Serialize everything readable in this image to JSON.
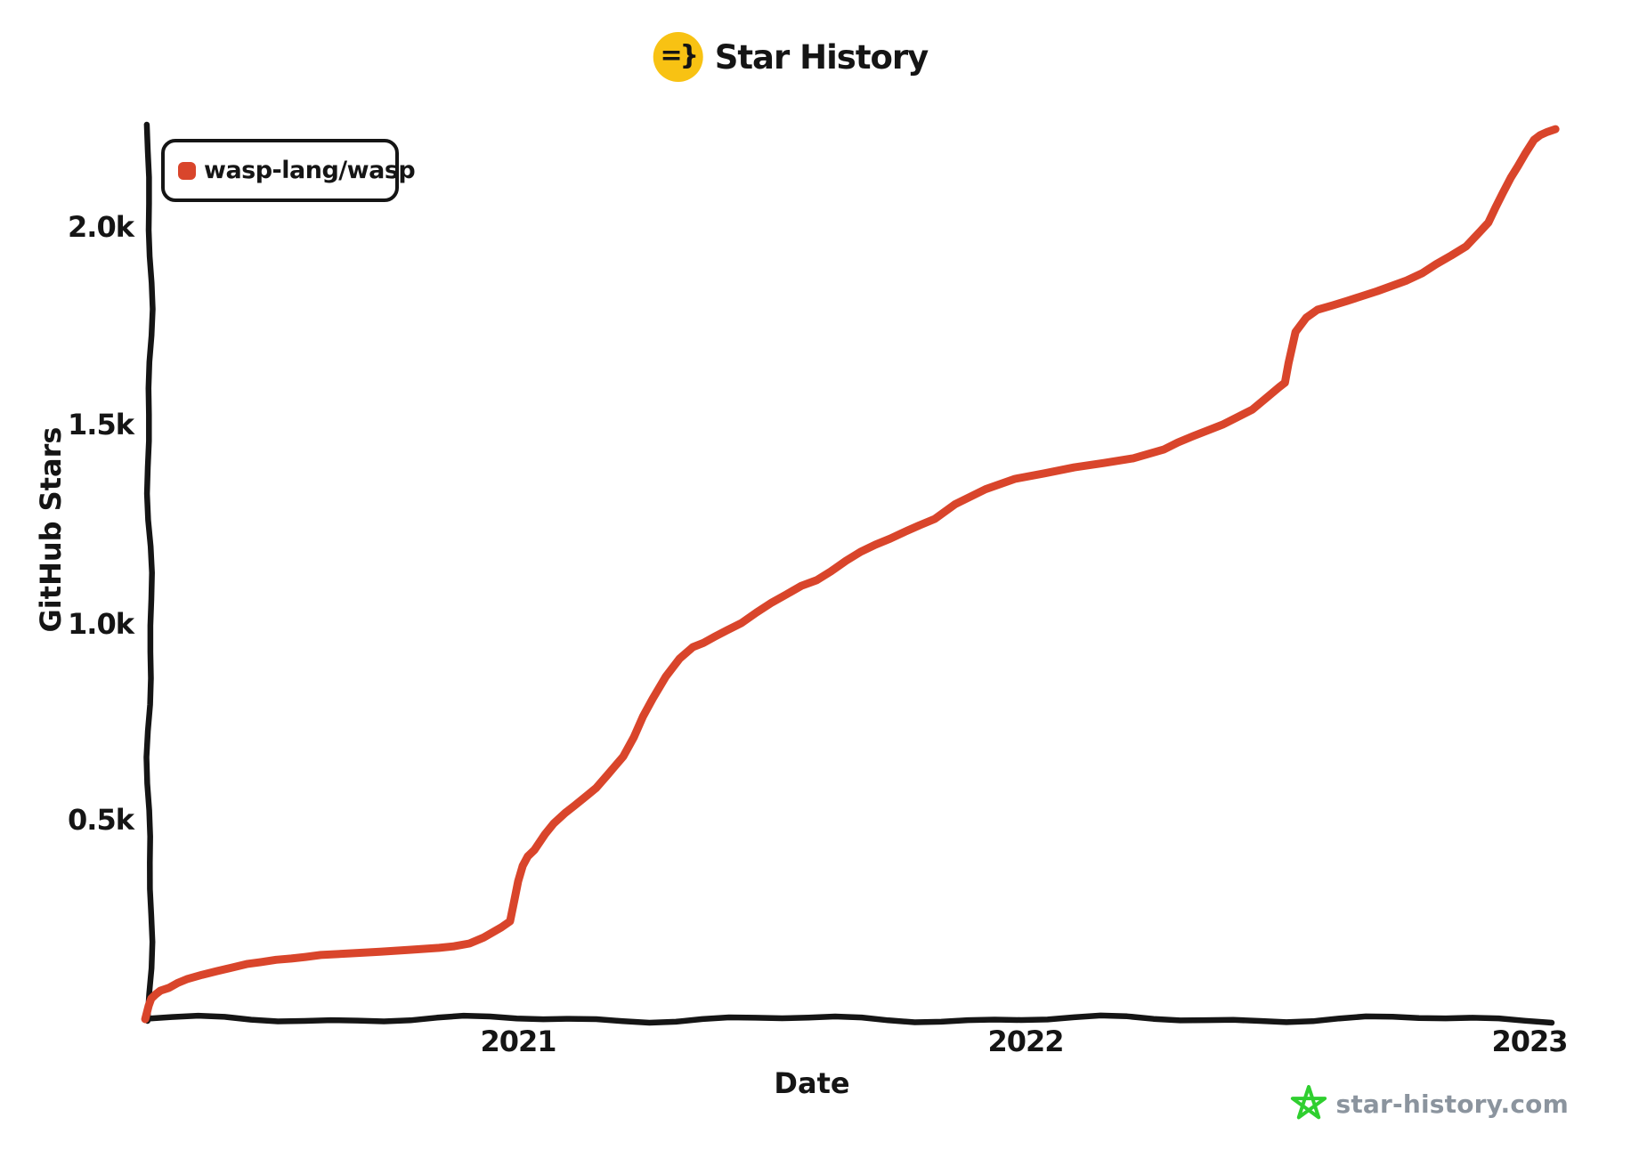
{
  "title": {
    "text": "Star History",
    "icon_text": "=}",
    "icon_bg": "#f8c213"
  },
  "legend": {
    "items": [
      {
        "label": "wasp-lang/wasp",
        "color": "#d9452b"
      }
    ]
  },
  "axes": {
    "y_label": "GitHub Stars",
    "x_label": "Date",
    "y_ticks": [
      "2.0k",
      "1.5k",
      "1.0k",
      "0.5k"
    ],
    "x_ticks": [
      "2021",
      "2022",
      "2023"
    ]
  },
  "footer": {
    "site": "star-history.com",
    "star_color": "#2fcf2f",
    "text_color": "#8b949e"
  },
  "colors": {
    "ink": "#151515",
    "background": "#ffffff"
  },
  "chart_data": {
    "type": "line",
    "title": "Star History",
    "xlabel": "Date",
    "ylabel": "GitHub Stars",
    "xlim": [
      2020.26,
      2023.05
    ],
    "ylim": [
      0,
      2310
    ],
    "x_tick_values": [
      2021,
      2022,
      2023
    ],
    "x_tick_labels": [
      "2021",
      "2022",
      "2023"
    ],
    "y_tick_values": [
      500,
      1000,
      1500,
      2000
    ],
    "y_tick_labels": [
      "0.5k",
      "1.0k",
      "1.5k",
      "2.0k"
    ],
    "grid": false,
    "legend_position": "top-left",
    "series": [
      {
        "name": "wasp-lang/wasp",
        "color": "#d9452b",
        "points_format": [
          "decimal_year",
          "stars"
        ],
        "points": [
          [
            2020.265,
            0
          ],
          [
            2020.272,
            34
          ],
          [
            2020.277,
            52
          ],
          [
            2020.286,
            63
          ],
          [
            2020.295,
            72
          ],
          [
            2020.312,
            79
          ],
          [
            2020.33,
            92
          ],
          [
            2020.347,
            101
          ],
          [
            2020.377,
            112
          ],
          [
            2020.405,
            121
          ],
          [
            2020.435,
            130
          ],
          [
            2020.465,
            139
          ],
          [
            2020.493,
            144
          ],
          [
            2020.523,
            150
          ],
          [
            2020.553,
            153
          ],
          [
            2020.581,
            157
          ],
          [
            2020.611,
            162
          ],
          [
            2020.668,
            166
          ],
          [
            2020.728,
            170
          ],
          [
            2020.786,
            175
          ],
          [
            2020.844,
            180
          ],
          [
            2020.874,
            184
          ],
          [
            2020.904,
            191
          ],
          [
            2020.932,
            206
          ],
          [
            2020.967,
            232
          ],
          [
            2020.984,
            247
          ],
          [
            2020.993,
            303
          ],
          [
            2021.0,
            348
          ],
          [
            2021.009,
            387
          ],
          [
            2021.019,
            411
          ],
          [
            2021.032,
            427
          ],
          [
            2021.053,
            467
          ],
          [
            2021.07,
            494
          ],
          [
            2021.093,
            521
          ],
          [
            2021.111,
            539
          ],
          [
            2021.137,
            566
          ],
          [
            2021.154,
            584
          ],
          [
            2021.177,
            618
          ],
          [
            2021.189,
            636
          ],
          [
            2021.207,
            663
          ],
          [
            2021.228,
            712
          ],
          [
            2021.246,
            764
          ],
          [
            2021.265,
            809
          ],
          [
            2021.291,
            865
          ],
          [
            2021.318,
            910
          ],
          [
            2021.344,
            939
          ],
          [
            2021.365,
            950
          ],
          [
            2021.388,
            966
          ],
          [
            2021.412,
            982
          ],
          [
            2021.44,
            1000
          ],
          [
            2021.47,
            1027
          ],
          [
            2021.5,
            1052
          ],
          [
            2021.528,
            1072
          ],
          [
            2021.558,
            1094
          ],
          [
            2021.588,
            1108
          ],
          [
            2021.616,
            1130
          ],
          [
            2021.646,
            1157
          ],
          [
            2021.675,
            1180
          ],
          [
            2021.704,
            1198
          ],
          [
            2021.733,
            1213
          ],
          [
            2021.763,
            1231
          ],
          [
            2021.791,
            1247
          ],
          [
            2021.821,
            1263
          ],
          [
            2021.861,
            1300
          ],
          [
            2021.921,
            1338
          ],
          [
            2021.979,
            1364
          ],
          [
            2022.037,
            1378
          ],
          [
            2022.096,
            1393
          ],
          [
            2022.154,
            1404
          ],
          [
            2022.212,
            1416
          ],
          [
            2022.272,
            1438
          ],
          [
            2022.3,
            1456
          ],
          [
            2022.33,
            1472
          ],
          [
            2022.388,
            1501
          ],
          [
            2022.447,
            1539
          ],
          [
            2022.475,
            1569
          ],
          [
            2022.5,
            1596
          ],
          [
            2022.511,
            1607
          ],
          [
            2022.518,
            1656
          ],
          [
            2022.532,
            1735
          ],
          [
            2022.553,
            1771
          ],
          [
            2022.575,
            1791
          ],
          [
            2022.605,
            1802
          ],
          [
            2022.633,
            1813
          ],
          [
            2022.693,
            1838
          ],
          [
            2022.751,
            1865
          ],
          [
            2022.781,
            1883
          ],
          [
            2022.809,
            1906
          ],
          [
            2022.839,
            1928
          ],
          [
            2022.868,
            1951
          ],
          [
            2022.896,
            1989
          ],
          [
            2022.912,
            2011
          ],
          [
            2022.926,
            2049
          ],
          [
            2022.94,
            2085
          ],
          [
            2022.956,
            2124
          ],
          [
            2022.97,
            2153
          ],
          [
            2022.984,
            2184
          ],
          [
            2023.002,
            2220
          ],
          [
            2023.014,
            2232
          ],
          [
            2023.028,
            2240
          ],
          [
            2023.044,
            2247
          ]
        ]
      }
    ]
  }
}
